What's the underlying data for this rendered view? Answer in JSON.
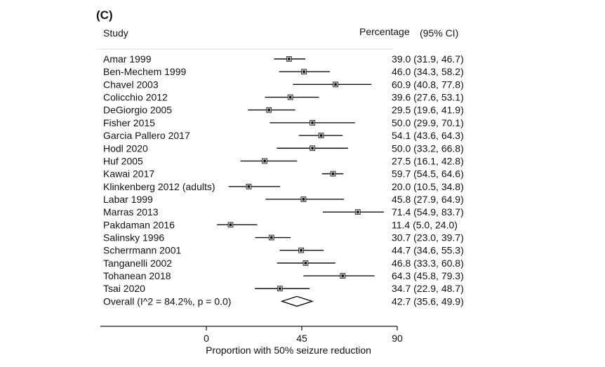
{
  "panel_label": "(C)",
  "headers": {
    "study": "Study",
    "percentage": "Percentage",
    "ci": "(95% CI)"
  },
  "chart_data": {
    "type": "forest",
    "xlabel": "Proportion with 50% seizure reduction",
    "xticks": [
      0,
      45,
      90
    ],
    "xlim": [
      -50,
      90
    ],
    "studies": [
      {
        "label": "Amar 1999",
        "est": 39.0,
        "lo": 31.9,
        "hi": 46.7,
        "text": "39.0 (31.9, 46.7)"
      },
      {
        "label": "Ben-Mechem 1999",
        "est": 46.0,
        "lo": 34.3,
        "hi": 58.2,
        "text": "46.0 (34.3, 58.2)"
      },
      {
        "label": "Chavel 2003",
        "est": 60.9,
        "lo": 40.8,
        "hi": 77.8,
        "text": "60.9 (40.8, 77.8)"
      },
      {
        "label": "Colicchio 2012",
        "est": 39.6,
        "lo": 27.6,
        "hi": 53.1,
        "text": "39.6 (27.6, 53.1)"
      },
      {
        "label": "DeGiorgio 2005",
        "est": 29.5,
        "lo": 19.6,
        "hi": 41.9,
        "text": "29.5 (19.6, 41.9)"
      },
      {
        "label": "Fisher 2015",
        "est": 50.0,
        "lo": 29.9,
        "hi": 70.1,
        "text": "50.0 (29.9, 70.1)"
      },
      {
        "label": "Garcia Pallero 2017",
        "est": 54.1,
        "lo": 43.6,
        "hi": 64.3,
        "text": "54.1 (43.6, 64.3)"
      },
      {
        "label": "Hodl 2020",
        "est": 50.0,
        "lo": 33.2,
        "hi": 66.8,
        "text": "50.0 (33.2, 66.8)"
      },
      {
        "label": "Huf 2005",
        "est": 27.5,
        "lo": 16.1,
        "hi": 42.8,
        "text": "27.5 (16.1, 42.8)"
      },
      {
        "label": "Kawai 2017",
        "est": 59.7,
        "lo": 54.5,
        "hi": 64.6,
        "text": "59.7 (54.5, 64.6)"
      },
      {
        "label": "Klinkenberg 2012 (adults)",
        "est": 20.0,
        "lo": 10.5,
        "hi": 34.8,
        "text": "20.0 (10.5, 34.8)"
      },
      {
        "label": "Labar 1999",
        "est": 45.8,
        "lo": 27.9,
        "hi": 64.9,
        "text": "45.8 (27.9, 64.9)"
      },
      {
        "label": "Marras 2013",
        "est": 71.4,
        "lo": 54.9,
        "hi": 83.7,
        "text": "71.4 (54.9, 83.7)"
      },
      {
        "label": "Pakdaman 2016",
        "est": 11.4,
        "lo": 5.0,
        "hi": 24.0,
        "text": "11.4 (5.0, 24.0)"
      },
      {
        "label": "Salinsky 1996",
        "est": 30.7,
        "lo": 23.0,
        "hi": 39.7,
        "text": "30.7 (23.0, 39.7)"
      },
      {
        "label": "Scherrmann 2001",
        "est": 44.7,
        "lo": 34.6,
        "hi": 55.3,
        "text": "44.7 (34.6, 55.3)"
      },
      {
        "label": "Tanganelli 2002",
        "est": 46.8,
        "lo": 33.3,
        "hi": 60.8,
        "text": "46.8 (33.3, 60.8)"
      },
      {
        "label": "Tohanean 2018",
        "est": 64.3,
        "lo": 45.8,
        "hi": 79.3,
        "text": "64.3 (45.8, 79.3)"
      },
      {
        "label": "Tsai 2020",
        "est": 34.7,
        "lo": 22.9,
        "hi": 48.7,
        "text": "34.7 (22.9, 48.7)"
      }
    ],
    "overall": {
      "label": "Overall  (I^2 = 84.2%, p = 0.0)",
      "est": 42.7,
      "lo": 35.6,
      "hi": 49.9,
      "text": "42.7 (35.6, 49.9)"
    }
  }
}
